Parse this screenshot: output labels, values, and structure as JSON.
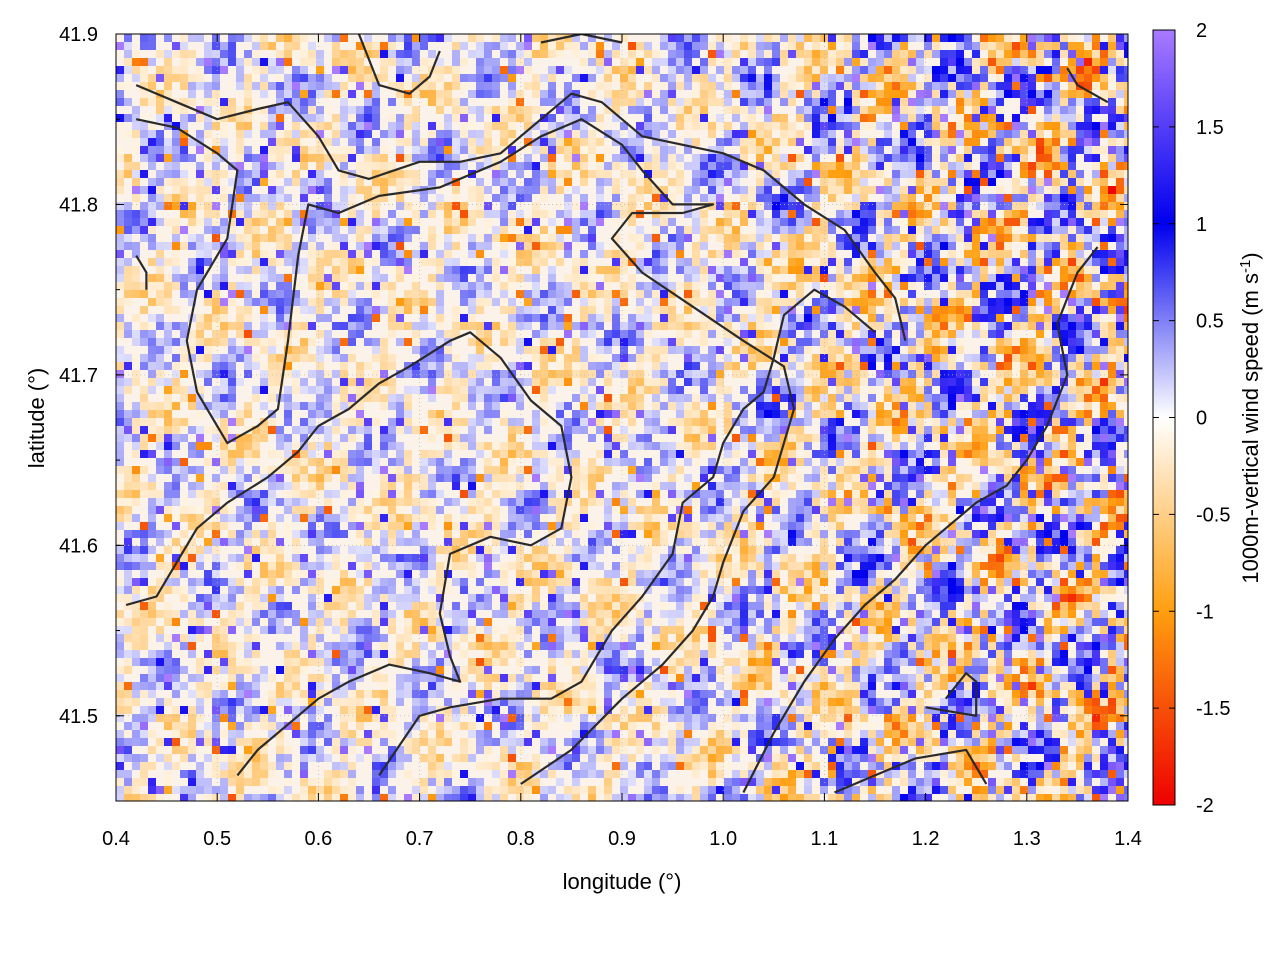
{
  "chart_data": {
    "type": "heatmap",
    "title": "",
    "xlabel": "longitude (°)",
    "ylabel": "latitude (°)",
    "xlim": [
      0.4,
      1.4
    ],
    "ylim": [
      41.45,
      41.9
    ],
    "xticks": [
      "0.4",
      "0.5",
      "0.6",
      "0.7",
      "0.8",
      "0.9",
      "1.0",
      "1.1",
      "1.2",
      "1.3",
      "1.4"
    ],
    "yticks": [
      "41.5",
      "41.6",
      "41.7",
      "41.8",
      "41.9"
    ],
    "grid": true,
    "colorbar": {
      "label_main": "1000m-vertical wind speed (m s",
      "label_sup": "-1",
      "label_end": ")",
      "range": [
        -2,
        2
      ],
      "ticks": [
        "2",
        "1.5",
        "1",
        "0.5",
        "0",
        "-0.5",
        "-1",
        "-1.5",
        "-2"
      ],
      "colors": [
        "#ee0000",
        "#ff8c00",
        "#ffffff",
        "#0000ee",
        "#9966ff"
      ]
    },
    "field_description_note": null,
    "contours": [
      [
        [
          0.42,
          41.87
        ],
        [
          0.46,
          41.86
        ],
        [
          0.5,
          41.85
        ],
        [
          0.54,
          41.856
        ],
        [
          0.57,
          41.86
        ],
        [
          0.6,
          41.84
        ],
        [
          0.62,
          41.82
        ],
        [
          0.65,
          41.815
        ],
        [
          0.7,
          41.825
        ],
        [
          0.74,
          41.825
        ],
        [
          0.78,
          41.83
        ],
        [
          0.82,
          41.85
        ],
        [
          0.85,
          41.865
        ],
        [
          0.88,
          41.86
        ],
        [
          0.92,
          41.84
        ],
        [
          0.96,
          41.835
        ],
        [
          1.0,
          41.83
        ],
        [
          1.04,
          41.82
        ],
        [
          1.08,
          41.8
        ],
        [
          1.12,
          41.785
        ],
        [
          1.15,
          41.76
        ],
        [
          1.17,
          41.745
        ],
        [
          1.18,
          41.72
        ]
      ],
      [
        [
          0.42,
          41.85
        ],
        [
          0.46,
          41.845
        ],
        [
          0.5,
          41.83
        ],
        [
          0.52,
          41.82
        ],
        [
          0.51,
          41.78
        ],
        [
          0.48,
          41.75
        ],
        [
          0.47,
          41.72
        ],
        [
          0.48,
          41.69
        ],
        [
          0.51,
          41.66
        ],
        [
          0.54,
          41.67
        ],
        [
          0.56,
          41.68
        ],
        [
          0.57,
          41.72
        ],
        [
          0.58,
          41.77
        ],
        [
          0.59,
          41.8
        ],
        [
          0.62,
          41.795
        ],
        [
          0.66,
          41.805
        ],
        [
          0.72,
          41.81
        ],
        [
          0.78,
          41.825
        ],
        [
          0.82,
          41.84
        ],
        [
          0.86,
          41.85
        ],
        [
          0.9,
          41.835
        ],
        [
          0.92,
          41.82
        ],
        [
          0.95,
          41.8
        ],
        [
          0.99,
          41.8
        ],
        [
          0.96,
          41.795
        ],
        [
          0.91,
          41.795
        ],
        [
          0.89,
          41.78
        ],
        [
          0.92,
          41.76
        ],
        [
          0.97,
          41.74
        ],
        [
          1.02,
          41.72
        ],
        [
          1.06,
          41.705
        ],
        [
          1.07,
          41.68
        ],
        [
          1.05,
          41.64
        ],
        [
          1.02,
          41.62
        ],
        [
          1.0,
          41.59
        ],
        [
          0.99,
          41.57
        ],
        [
          0.97,
          41.55
        ],
        [
          0.94,
          41.53
        ],
        [
          0.9,
          41.51
        ],
        [
          0.85,
          41.48
        ],
        [
          0.8,
          41.46
        ]
      ],
      [
        [
          0.41,
          41.565
        ],
        [
          0.44,
          41.57
        ],
        [
          0.46,
          41.59
        ],
        [
          0.48,
          41.61
        ],
        [
          0.51,
          41.625
        ],
        [
          0.55,
          41.64
        ],
        [
          0.58,
          41.655
        ],
        [
          0.6,
          41.67
        ],
        [
          0.63,
          41.68
        ],
        [
          0.66,
          41.695
        ],
        [
          0.69,
          41.705
        ],
        [
          0.73,
          41.72
        ],
        [
          0.75,
          41.725
        ],
        [
          0.78,
          41.71
        ],
        [
          0.81,
          41.685
        ],
        [
          0.84,
          41.67
        ],
        [
          0.85,
          41.64
        ],
        [
          0.84,
          41.61
        ],
        [
          0.81,
          41.6
        ],
        [
          0.77,
          41.605
        ],
        [
          0.73,
          41.595
        ],
        [
          0.72,
          41.56
        ],
        [
          0.73,
          41.535
        ],
        [
          0.74,
          41.52
        ],
        [
          0.71,
          41.525
        ],
        [
          0.67,
          41.53
        ],
        [
          0.63,
          41.52
        ],
        [
          0.6,
          41.51
        ],
        [
          0.58,
          41.5
        ],
        [
          0.54,
          41.48
        ],
        [
          0.52,
          41.465
        ]
      ],
      [
        [
          0.66,
          41.465
        ],
        [
          0.7,
          41.5
        ],
        [
          0.73,
          41.505
        ],
        [
          0.78,
          41.51
        ],
        [
          0.83,
          41.51
        ],
        [
          0.86,
          41.52
        ],
        [
          0.89,
          41.55
        ],
        [
          0.92,
          41.57
        ],
        [
          0.95,
          41.595
        ],
        [
          0.96,
          41.625
        ],
        [
          0.99,
          41.64
        ],
        [
          1.0,
          41.66
        ],
        [
          1.02,
          41.68
        ],
        [
          1.04,
          41.69
        ],
        [
          1.05,
          41.71
        ],
        [
          1.06,
          41.735
        ],
        [
          1.09,
          41.75
        ],
        [
          1.12,
          41.74
        ],
        [
          1.15,
          41.725
        ]
      ],
      [
        [
          1.02,
          41.455
        ],
        [
          1.05,
          41.49
        ],
        [
          1.08,
          41.52
        ],
        [
          1.11,
          41.545
        ],
        [
          1.14,
          41.565
        ],
        [
          1.17,
          41.58
        ],
        [
          1.2,
          41.6
        ],
        [
          1.22,
          41.61
        ],
        [
          1.25,
          41.625
        ],
        [
          1.28,
          41.635
        ],
        [
          1.3,
          41.65
        ],
        [
          1.32,
          41.67
        ],
        [
          1.34,
          41.7
        ],
        [
          1.33,
          41.73
        ],
        [
          1.35,
          41.76
        ],
        [
          1.37,
          41.775
        ]
      ],
      [
        [
          1.11,
          41.455
        ],
        [
          1.15,
          41.465
        ],
        [
          1.19,
          41.475
        ],
        [
          1.24,
          41.48
        ],
        [
          1.26,
          41.46
        ]
      ],
      [
        [
          1.2,
          41.505
        ],
        [
          1.25,
          41.5
        ],
        [
          1.25,
          41.52
        ],
        [
          1.24,
          41.525
        ],
        [
          1.22,
          41.51
        ]
      ],
      [
        [
          1.34,
          41.88
        ],
        [
          1.35,
          41.87
        ],
        [
          1.38,
          41.86
        ]
      ],
      [
        [
          0.64,
          41.9
        ],
        [
          0.66,
          41.87
        ],
        [
          0.69,
          41.865
        ],
        [
          0.71,
          41.875
        ],
        [
          0.72,
          41.89
        ]
      ],
      [
        [
          0.82,
          41.895
        ],
        [
          0.86,
          41.9
        ],
        [
          0.9,
          41.895
        ]
      ],
      [
        [
          0.42,
          41.77
        ],
        [
          0.43,
          41.76
        ],
        [
          0.43,
          41.75
        ]
      ]
    ]
  }
}
